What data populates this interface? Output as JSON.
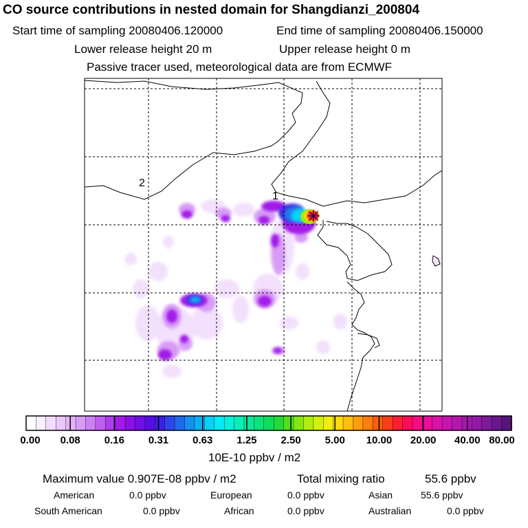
{
  "header": {
    "title": "CO  source contributions in nested domain for Shangdianzi_200804",
    "start_label": "Start time of sampling 20080406.120000",
    "end_label": "End time of sampling 20080406.150000",
    "lower_label": "Lower release height   20 m",
    "upper_label": "Upper release height    0 m",
    "tracer_label": "Passive tracer used, meteorological data are from ECMWF"
  },
  "map": {
    "marker_1": "1",
    "marker_2": "2"
  },
  "colorbar": {
    "tick_labels": [
      "0.00",
      "0.08",
      "0.16",
      "0.31",
      "0.63",
      "1.25",
      "2.50",
      "5.00",
      "10.00",
      "20.00",
      "40.00",
      "80.00"
    ],
    "unit_label": "10E-10 ppbv / m2",
    "colors": [
      "#ffffff",
      "#f8eefe",
      "#f1ddfd",
      "#e9c8fb",
      "#e2b4fa",
      "#d79bf6",
      "#cc80f3",
      "#bf5ff0",
      "#b13bee",
      "#a51aeb",
      "#8a10e8",
      "#6f0fe7",
      "#560ee6",
      "#3f1fe6",
      "#2c46e8",
      "#1f6aec",
      "#1490f0",
      "#0bb0f3",
      "#05d2f5",
      "#02ecf3",
      "#05f0d8",
      "#08eebb",
      "#0be89a",
      "#0ee27b",
      "#13dc5c",
      "#25d83a",
      "#52e01c",
      "#85e812",
      "#b1ee0e",
      "#d3f00d",
      "#f1ed0c",
      "#ffd90c",
      "#ffbd0c",
      "#ff9e0c",
      "#ff7f0c",
      "#ff5e0f",
      "#ff3d18",
      "#ff1f33",
      "#ff0d5a",
      "#f70d82",
      "#e80f9a",
      "#d812a6",
      "#c714ad",
      "#b516b0",
      "#a318ad",
      "#901aa6",
      "#7d1a9a",
      "#69178c",
      "#56147c"
    ]
  },
  "summary": {
    "max_label": "Maximum value  0.907E-08 ppbv / m2",
    "total_label": "Total mixing ratio",
    "total_value": "55.6 ppbv",
    "regions": [
      {
        "name": "American",
        "value": "0.0 ppbv"
      },
      {
        "name": "European",
        "value": "0.0 ppbv"
      },
      {
        "name": "Asian",
        "value": "55.6 ppbv"
      },
      {
        "name": "South American",
        "value": "0.0 ppbv"
      },
      {
        "name": "African",
        "value": "0.0 ppbv"
      },
      {
        "name": "Australian",
        "value": "0.0 ppbv"
      }
    ]
  }
}
